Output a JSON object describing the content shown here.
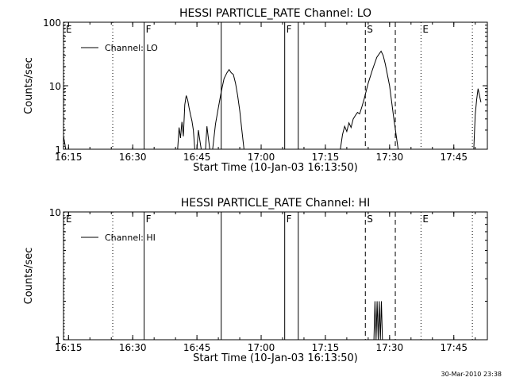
{
  "footer": "30-Mar-2010 23:38",
  "chart_data": [
    {
      "type": "line",
      "title": "HESSI PARTICLE_RATE Channel: LO",
      "xlabel": "Start Time (10-Jan-03 16:13:50)",
      "ylabel": "Counts/sec",
      "yscale": "log",
      "ylim": [
        1,
        100
      ],
      "xlim": [
        "16:13:50",
        "17:52:50"
      ],
      "x_ticks": [
        "16:15",
        "16:30",
        "16:45",
        "17:00",
        "17:15",
        "17:30",
        "17:45"
      ],
      "y_ticks": [
        "1",
        "10",
        "100"
      ],
      "legend": {
        "placement": "top-left",
        "entries": [
          "Channel: LO"
        ]
      },
      "series": [
        {
          "name": "Channel: LO",
          "segments": [
            {
              "x": [
                "16:13:50",
                "16:14:10",
                "16:14:20"
              ],
              "y": [
                1.6,
                1.2,
                1.0
              ]
            },
            {
              "x": [
                "16:40:30",
                "16:40:50",
                "16:41:10",
                "16:41:30",
                "16:41:50",
                "16:42:10",
                "16:42:30",
                "16:42:50",
                "16:43:10",
                "16:43:30",
                "16:43:50",
                "16:44:10",
                "16:44:30"
              ],
              "y": [
                1.0,
                2.2,
                1.5,
                2.7,
                1.6,
                5.0,
                7.0,
                6.0,
                4.5,
                3.5,
                2.8,
                2.0,
                1.0
              ]
            },
            {
              "x": [
                "16:45:00",
                "16:45:20",
                "16:45:40",
                "16:46:00"
              ],
              "y": [
                1.0,
                2.0,
                1.4,
                1.0
              ]
            },
            {
              "x": [
                "16:47:00",
                "16:47:20",
                "16:47:40",
                "16:48:00"
              ],
              "y": [
                1.0,
                2.3,
                1.5,
                1.0
              ]
            },
            {
              "x": [
                "16:48:40",
                "16:49:20",
                "16:50:00",
                "16:50:40",
                "16:51:20",
                "16:52:00",
                "16:52:30",
                "16:53:00",
                "16:53:30",
                "16:54:00",
                "16:54:30",
                "16:55:00",
                "16:55:30",
                "16:56:00"
              ],
              "y": [
                1.0,
                2.5,
                4.5,
                8.0,
                13.0,
                16.0,
                18.0,
                16.0,
                15.0,
                11.0,
                7.0,
                4.0,
                2.0,
                1.0
              ]
            },
            {
              "x": [
                "17:18:30",
                "17:19:00",
                "17:19:30",
                "17:20:00",
                "17:20:30",
                "17:21:00",
                "17:21:30",
                "17:22:00",
                "17:22:30",
                "17:23:00",
                "17:23:30",
                "17:24:00",
                "17:25:00",
                "17:26:00",
                "17:27:00",
                "17:28:00",
                "17:28:30",
                "17:29:00",
                "17:30:00",
                "17:31:00",
                "17:32:00"
              ],
              "y": [
                1.0,
                1.7,
                2.3,
                1.9,
                2.6,
                2.2,
                3.0,
                3.4,
                3.8,
                3.6,
                4.6,
                6.0,
                11.0,
                18.0,
                28.0,
                35.0,
                30.0,
                22.0,
                10.0,
                3.0,
                1.0
              ]
            },
            {
              "x": [
                "17:49:40",
                "17:50:00",
                "17:50:20",
                "17:50:40",
                "17:51:00",
                "17:51:20"
              ],
              "y": [
                1.0,
                3.5,
                6.0,
                9.0,
                7.0,
                5.5
              ]
            }
          ]
        }
      ],
      "markers": [
        {
          "label": "E",
          "style": "dotted",
          "time": "16:14:00"
        },
        {
          "label": "",
          "style": "dotted",
          "time": "16:25:20"
        },
        {
          "label": "F",
          "style": "solid",
          "time": "16:32:40"
        },
        {
          "label": "",
          "style": "solid",
          "time": "16:50:40"
        },
        {
          "label": "F",
          "style": "solid",
          "time": "17:05:30"
        },
        {
          "label": "",
          "style": "solid",
          "time": "17:08:40"
        },
        {
          "label": "S",
          "style": "dashed",
          "time": "17:24:20"
        },
        {
          "label": "",
          "style": "dashed",
          "time": "17:31:20"
        },
        {
          "label": "E",
          "style": "dotted",
          "time": "17:37:20"
        },
        {
          "label": "",
          "style": "dotted",
          "time": "17:49:20"
        }
      ]
    },
    {
      "type": "line",
      "title": "HESSI PARTICLE_RATE Channel: HI",
      "xlabel": "Start Time (10-Jan-03 16:13:50)",
      "ylabel": "Counts/sec",
      "yscale": "log",
      "ylim": [
        1,
        10
      ],
      "xlim": [
        "16:13:50",
        "17:52:50"
      ],
      "x_ticks": [
        "16:15",
        "16:30",
        "16:45",
        "17:00",
        "17:15",
        "17:30",
        "17:45"
      ],
      "y_ticks": [
        "1",
        "10"
      ],
      "legend": {
        "placement": "top-left",
        "entries": [
          "Channel: HI"
        ]
      },
      "series": [
        {
          "name": "Channel: HI",
          "segments": [
            {
              "x": [
                "17:26:20",
                "17:26:35",
                "17:26:50",
                "17:27:05",
                "17:27:20",
                "17:27:35",
                "17:27:50",
                "17:28:05",
                "17:28:20"
              ],
              "y": [
                1.0,
                2.0,
                1.0,
                2.0,
                1.0,
                2.0,
                1.0,
                2.0,
                1.0
              ]
            }
          ]
        }
      ],
      "markers": [
        {
          "label": "E",
          "style": "dotted",
          "time": "16:14:00"
        },
        {
          "label": "",
          "style": "dotted",
          "time": "16:25:20"
        },
        {
          "label": "F",
          "style": "solid",
          "time": "16:32:40"
        },
        {
          "label": "",
          "style": "solid",
          "time": "16:50:40"
        },
        {
          "label": "F",
          "style": "solid",
          "time": "17:05:30"
        },
        {
          "label": "",
          "style": "solid",
          "time": "17:08:40"
        },
        {
          "label": "S",
          "style": "dashed",
          "time": "17:24:20"
        },
        {
          "label": "",
          "style": "dashed",
          "time": "17:31:20"
        },
        {
          "label": "E",
          "style": "dotted",
          "time": "17:37:20"
        },
        {
          "label": "",
          "style": "dotted",
          "time": "17:49:20"
        }
      ]
    }
  ]
}
